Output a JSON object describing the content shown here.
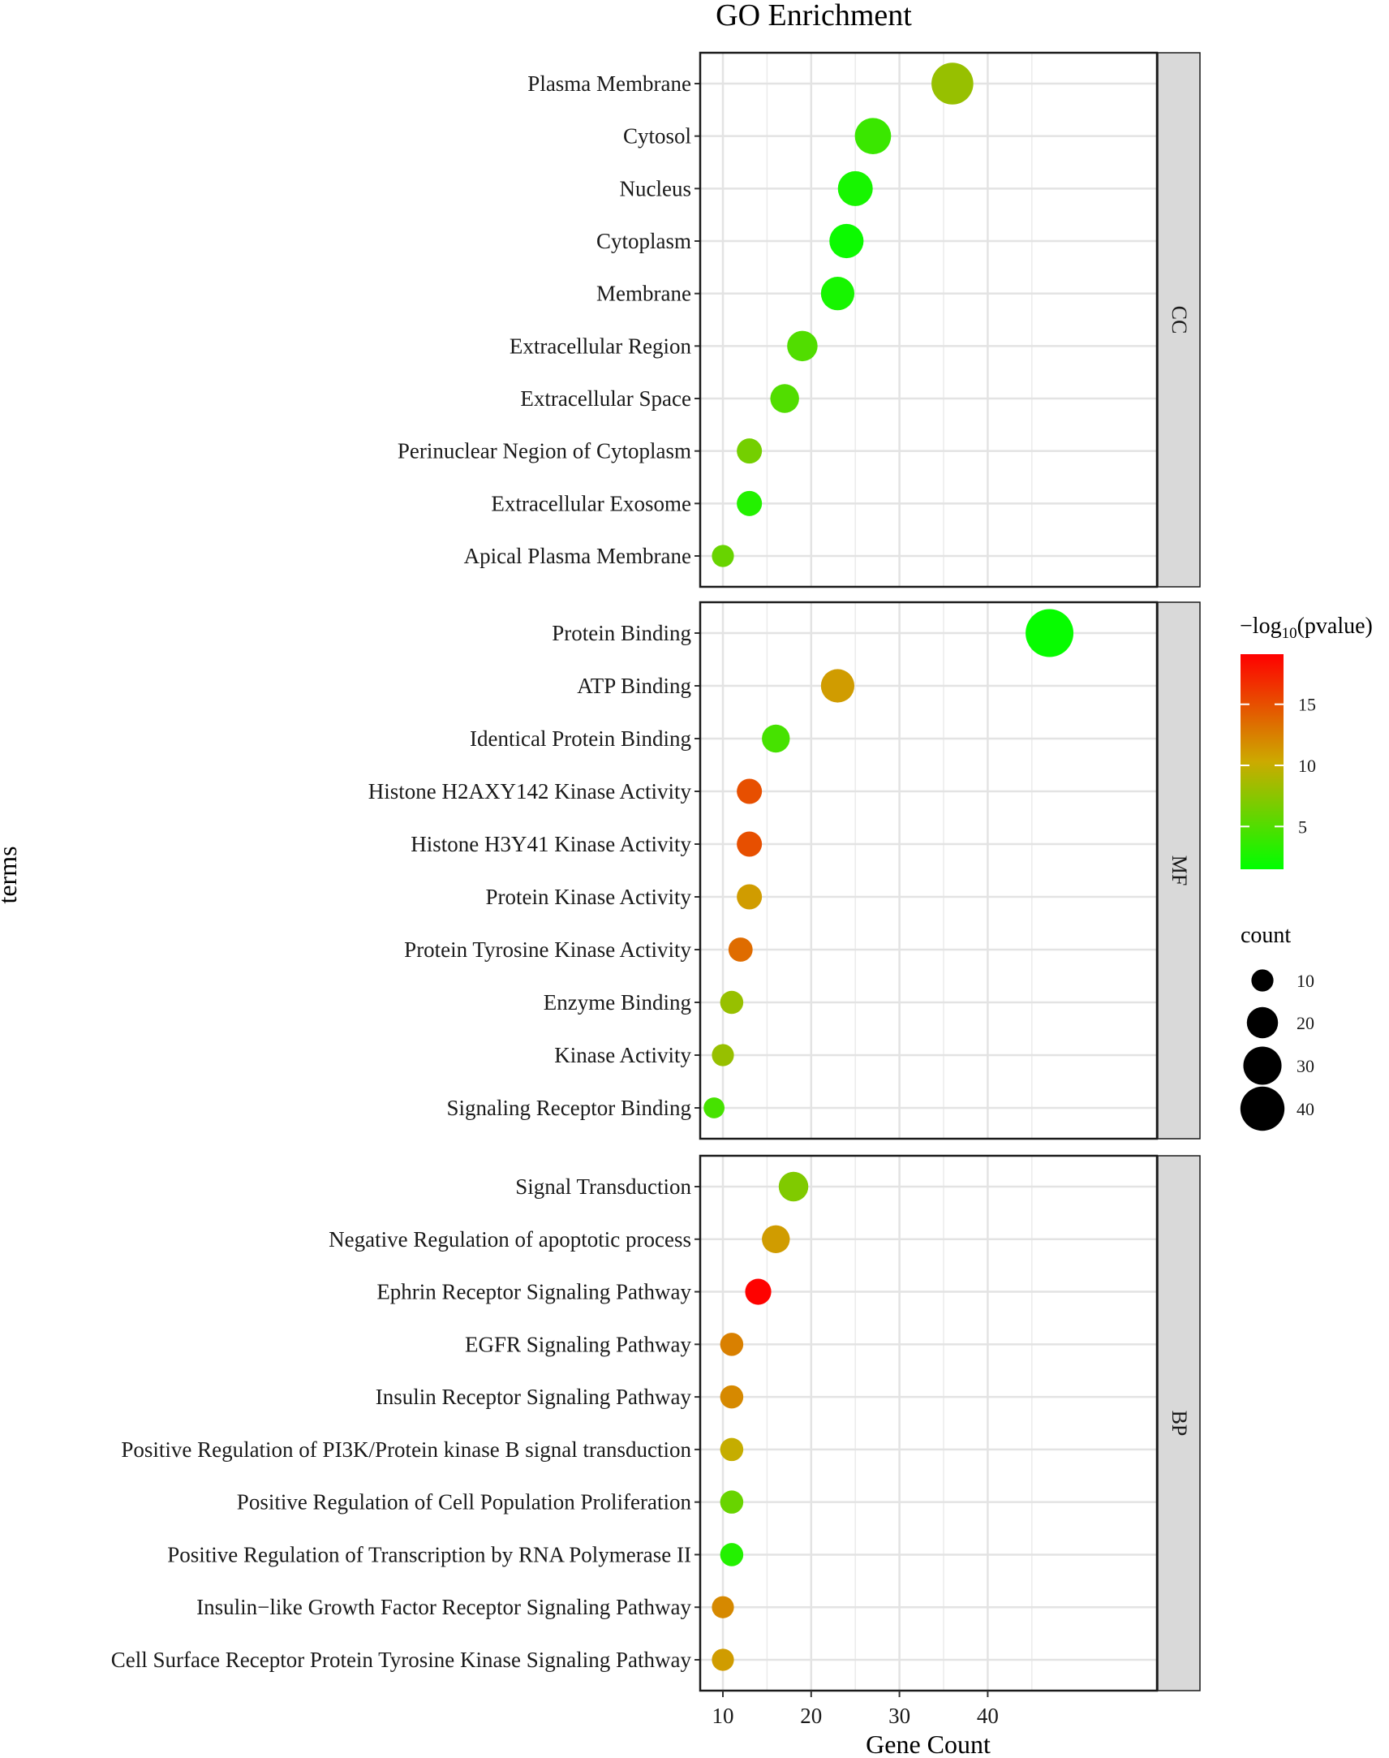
{
  "chart_data": {
    "type": "scatter",
    "subtype": "faceted-dot-plot",
    "title": "GO Enrichment",
    "xlabel": "Gene Count",
    "ylabel": "terms",
    "xlim": [
      7.7,
      49.8
    ],
    "xticks": [
      10,
      20,
      30,
      40
    ],
    "grid": true,
    "color_scale": {
      "title_prefix": "−log",
      "title_sub": "10",
      "title_suffix": "(pvalue)",
      "low_color": "#00FF00",
      "high_color": "#FF0000",
      "range": [
        1.5,
        19.1
      ],
      "ticks": [
        5,
        10,
        15
      ]
    },
    "size_legend": {
      "title": "count",
      "values": [
        10,
        20,
        30,
        40
      ]
    },
    "legend_position": "right",
    "facets": [
      {
        "name": "CC",
        "terms": [
          {
            "term": "Plasma Membrane",
            "count": 36,
            "neglog10p": 8
          },
          {
            "term": "Cytosol",
            "count": 27,
            "neglog10p": 4
          },
          {
            "term": "Nucleus",
            "count": 25,
            "neglog10p": 2.5
          },
          {
            "term": "Cytoplasm",
            "count": 24,
            "neglog10p": 2
          },
          {
            "term": "Membrane",
            "count": 23,
            "neglog10p": 2.5
          },
          {
            "term": "Extracellular Region",
            "count": 19,
            "neglog10p": 5
          },
          {
            "term": "Extracellular Space",
            "count": 17,
            "neglog10p": 5
          },
          {
            "term": "Perinuclear Negion of Cytoplasm",
            "count": 13,
            "neglog10p": 6.5
          },
          {
            "term": "Extracellular Exosome",
            "count": 13,
            "neglog10p": 3
          },
          {
            "term": "Apical Plasma Membrane",
            "count": 10,
            "neglog10p": 6
          }
        ]
      },
      {
        "name": "MF",
        "terms": [
          {
            "term": "Protein Binding",
            "count": 47,
            "neglog10p": 1.8
          },
          {
            "term": "ATP Binding",
            "count": 23,
            "neglog10p": 11
          },
          {
            "term": "Identical Protein Binding",
            "count": 16,
            "neglog10p": 4.5
          },
          {
            "term": "Histone H2AXY142 Kinase Activity",
            "count": 13,
            "neglog10p": 15
          },
          {
            "term": "Histone H3Y41 Kinase Activity",
            "count": 13,
            "neglog10p": 15
          },
          {
            "term": "Protein Kinase Activity",
            "count": 13,
            "neglog10p": 11
          },
          {
            "term": "Protein Tyrosine Kinase Activity",
            "count": 12,
            "neglog10p": 13.5
          },
          {
            "term": "Enzyme Binding",
            "count": 11,
            "neglog10p": 8
          },
          {
            "term": "Kinase Activity",
            "count": 10,
            "neglog10p": 8
          },
          {
            "term": "Signaling Receptor Binding",
            "count": 9,
            "neglog10p": 4.5
          }
        ]
      },
      {
        "name": "BP",
        "terms": [
          {
            "term": "Signal Transduction",
            "count": 18,
            "neglog10p": 7
          },
          {
            "term": "Negative Regulation of apoptotic process",
            "count": 16,
            "neglog10p": 11
          },
          {
            "term": "Ephrin Receptor Signaling Pathway",
            "count": 14,
            "neglog10p": 19
          },
          {
            "term": "EGFR Signaling Pathway",
            "count": 11,
            "neglog10p": 12.5
          },
          {
            "term": "Insulin Receptor Signaling Pathway",
            "count": 11,
            "neglog10p": 12
          },
          {
            "term": "Positive Regulation of PI3K/Protein kinase B signal transduction",
            "count": 11,
            "neglog10p": 10
          },
          {
            "term": "Positive Regulation of Cell Population Proliferation",
            "count": 11,
            "neglog10p": 6
          },
          {
            "term": "Positive Regulation of Transcription by RNA Polymerase II",
            "count": 11,
            "neglog10p": 3
          },
          {
            "term": "Insulin−like Growth Factor Receptor Signaling Pathway",
            "count": 10,
            "neglog10p": 12
          },
          {
            "term": "Cell Surface Receptor Protein Tyrosine Kinase Signaling Pathway",
            "count": 10,
            "neglog10p": 11
          }
        ]
      }
    ]
  }
}
